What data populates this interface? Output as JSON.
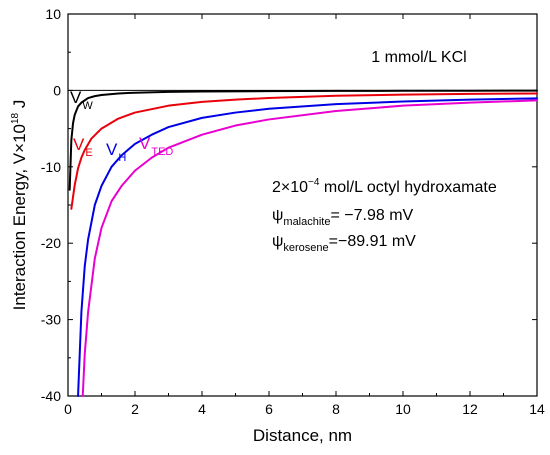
{
  "chart_data": {
    "type": "line",
    "xlabel": "Distance, nm",
    "ylabel_main": "Interaction Energy, V×10",
    "ylabel_sup": "18",
    "ylabel_unit": " J",
    "xlim": [
      0,
      14
    ],
    "ylim": [
      -40,
      10
    ],
    "xticks": [
      0,
      2,
      4,
      6,
      8,
      10,
      12,
      14
    ],
    "yticks": [
      10,
      0,
      -10,
      -20,
      -30,
      -40
    ],
    "grid": false,
    "annotations": {
      "kcl": "1 mmol/L KCl",
      "conc_main": "2×10",
      "conc_sup": "−4",
      "conc_rest": " mol/L octyl hydroxamate",
      "psi_symbol": "ψ",
      "psi1_sub": "malachite",
      "psi1_val": "= −7.98 mV",
      "psi2_sub": "kerosene",
      "psi2_val": "=−89.91 mV"
    },
    "series": [
      {
        "label_main": "V",
        "label_sub": "W",
        "color": "#000000",
        "x": [
          0.05,
          0.1,
          0.15,
          0.2,
          0.3,
          0.4,
          0.6,
          0.8,
          1.0,
          1.5,
          2.0,
          3.0,
          4.0,
          6.0,
          8.0,
          10.0,
          12.0,
          14.0
        ],
        "y": [
          -13.0,
          -6.5,
          -4.3,
          -3.2,
          -2.1,
          -1.6,
          -1.0,
          -0.75,
          -0.6,
          -0.4,
          -0.3,
          -0.2,
          -0.15,
          -0.1,
          -0.07,
          -0.05,
          -0.04,
          -0.03
        ]
      },
      {
        "label_main": "V",
        "label_sub": "E",
        "color": "#e8000b",
        "x": [
          0.1,
          0.2,
          0.3,
          0.4,
          0.5,
          0.7,
          1.0,
          1.5,
          2.0,
          3.0,
          4.0,
          5.0,
          6.0,
          8.0,
          10.0,
          12.0,
          14.0
        ],
        "y": [
          -15.5,
          -12.4,
          -10.2,
          -8.8,
          -7.8,
          -6.3,
          -5.0,
          -3.7,
          -2.9,
          -2.0,
          -1.5,
          -1.2,
          -1.0,
          -0.7,
          -0.55,
          -0.45,
          -0.4
        ]
      },
      {
        "label_main": "V",
        "label_sub": "H",
        "color": "#0000e6",
        "x": [
          0.3,
          0.4,
          0.5,
          0.6,
          0.8,
          1.0,
          1.3,
          1.6,
          2.0,
          2.5,
          3.0,
          4.0,
          5.0,
          6.0,
          8.0,
          10.0,
          12.0,
          14.0
        ],
        "y": [
          -40.0,
          -29.0,
          -23.0,
          -19.5,
          -15.0,
          -12.5,
          -10.0,
          -8.5,
          -7.0,
          -5.8,
          -4.8,
          -3.6,
          -2.9,
          -2.4,
          -1.8,
          -1.45,
          -1.2,
          -1.05
        ]
      },
      {
        "label_main": "V",
        "label_sub": "TED",
        "color": "#e800d0",
        "x": [
          0.44,
          0.5,
          0.6,
          0.8,
          1.0,
          1.3,
          1.6,
          2.0,
          2.5,
          3.0,
          4.0,
          5.0,
          6.0,
          8.0,
          10.0,
          12.0,
          14.0
        ],
        "y": [
          -40.0,
          -34.5,
          -29.0,
          -22.0,
          -18.0,
          -14.5,
          -12.5,
          -10.5,
          -8.8,
          -7.5,
          -5.8,
          -4.6,
          -3.8,
          -2.7,
          -2.0,
          -1.6,
          -1.3
        ]
      }
    ]
  }
}
